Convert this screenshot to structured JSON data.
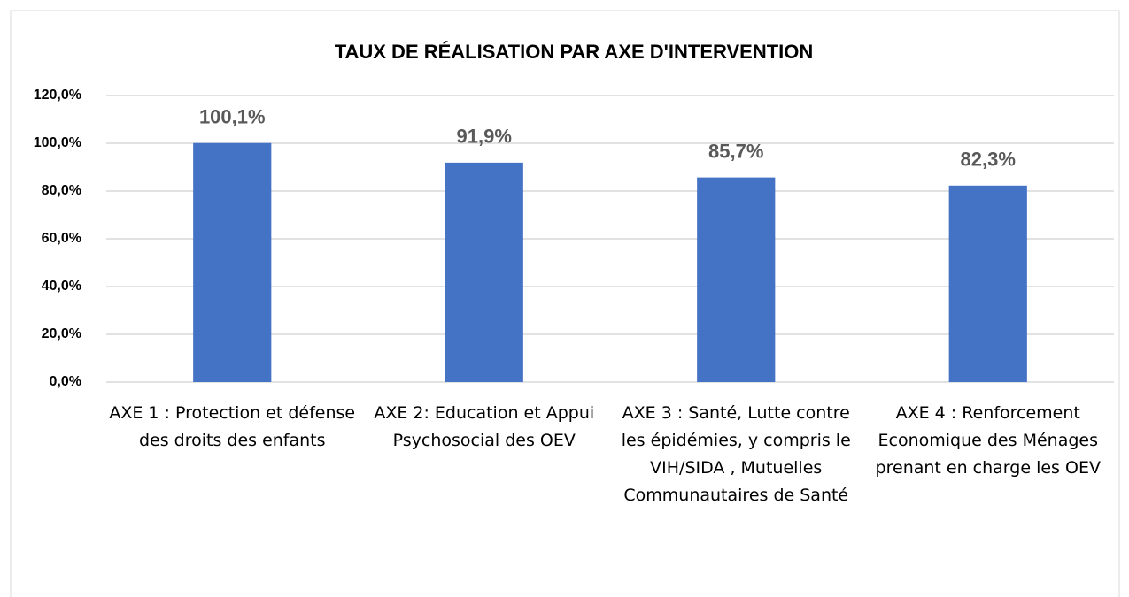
{
  "chart_data": {
    "type": "bar",
    "title": "TAUX DE RÉALISATION PAR  AXE D'INTERVENTION",
    "categories": [
      "AXE 1 : Protection et défense des droits des enfants",
      "AXE 2: Education et Appui Psychosocial des OEV",
      "AXE 3 : Santé, Lutte contre les épidémies, y compris le VIH/SIDA , Mutuelles Communautaires de Santé",
      "AXE 4 : Renforcement Economique des Ménages prenant en charge les OEV"
    ],
    "values": [
      100.1,
      91.9,
      85.7,
      82.3
    ],
    "value_labels": [
      "100,1%",
      "91,9%",
      "85,7%",
      "82,3%"
    ],
    "color": "#4472c4",
    "ylim": [
      0,
      120
    ],
    "yticks": [
      {
        "value": 0,
        "label": "0,0%"
      },
      {
        "value": 20,
        "label": "20,0%"
      },
      {
        "value": 40,
        "label": "40,0%"
      },
      {
        "value": 60,
        "label": "60,0%"
      },
      {
        "value": 80,
        "label": "80,0%"
      },
      {
        "value": 100,
        "label": "100,0%"
      },
      {
        "value": 120,
        "label": "120,0%"
      }
    ],
    "grid": true
  }
}
